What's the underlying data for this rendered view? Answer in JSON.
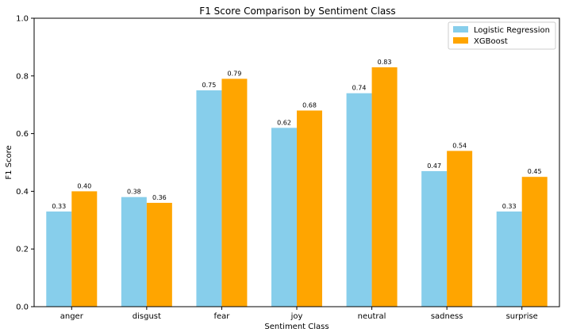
{
  "chart_data": {
    "type": "bar",
    "title": "F1 Score Comparison by Sentiment Class",
    "xlabel": "Sentiment Class",
    "ylabel": "F1 Score",
    "ylim": [
      0,
      1.0
    ],
    "yticks": [
      "0.0",
      "0.2",
      "0.4",
      "0.6",
      "0.8",
      "1.0"
    ],
    "ytick_values": [
      0.0,
      0.2,
      0.4,
      0.6,
      0.8,
      1.0
    ],
    "categories": [
      "anger",
      "disgust",
      "fear",
      "joy",
      "neutral",
      "sadness",
      "surprise"
    ],
    "series": [
      {
        "name": "Logistic Regression",
        "color": "#87CEEB",
        "values": [
          0.33,
          0.38,
          0.75,
          0.62,
          0.74,
          0.47,
          0.33
        ],
        "labels": [
          "0.33",
          "0.38",
          "0.75",
          "0.62",
          "0.74",
          "0.47",
          "0.33"
        ]
      },
      {
        "name": "XGBoost",
        "color": "#FFA500",
        "values": [
          0.4,
          0.36,
          0.79,
          0.68,
          0.83,
          0.54,
          0.45
        ],
        "labels": [
          "0.40",
          "0.36",
          "0.79",
          "0.68",
          "0.83",
          "0.54",
          "0.45"
        ]
      }
    ],
    "grid": false,
    "legend_position": "top-right"
  }
}
